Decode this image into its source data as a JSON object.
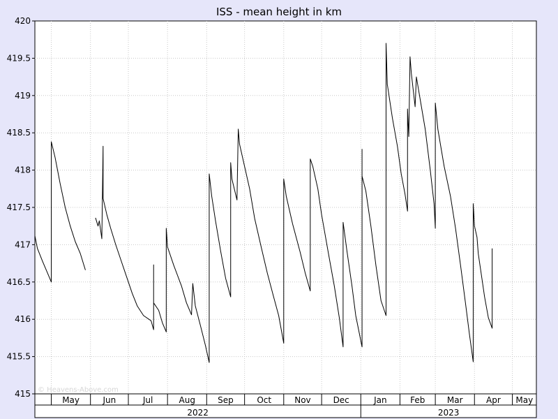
{
  "chart_data": {
    "type": "line",
    "title": "ISS - mean height in km",
    "xlabel": "",
    "ylabel": "",
    "ylim": [
      415,
      420
    ],
    "y_ticks": [
      "415",
      "415.5",
      "416",
      "416.5",
      "417",
      "417.5",
      "418",
      "418.5",
      "419",
      "419.5",
      "420"
    ],
    "x_range": [
      "2022-04-18",
      "2023-05-20"
    ],
    "months": [
      {
        "label": "May",
        "date": "2022-05-01"
      },
      {
        "label": "Jun",
        "date": "2022-06-01"
      },
      {
        "label": "Jul",
        "date": "2022-07-01"
      },
      {
        "label": "Aug",
        "date": "2022-08-01"
      },
      {
        "label": "Sep",
        "date": "2022-09-01"
      },
      {
        "label": "Oct",
        "date": "2022-10-01"
      },
      {
        "label": "Nov",
        "date": "2022-11-01"
      },
      {
        "label": "Dec",
        "date": "2022-12-01"
      },
      {
        "label": "Jan",
        "date": "2023-01-01"
      },
      {
        "label": "Feb",
        "date": "2023-02-01"
      },
      {
        "label": "Mar",
        "date": "2023-03-01"
      },
      {
        "label": "Apr",
        "date": "2023-04-01"
      },
      {
        "label": "May",
        "date": "2023-05-01"
      }
    ],
    "years": [
      {
        "label": "2022",
        "start": "2022-04-18",
        "end": "2023-01-01"
      },
      {
        "label": "2023",
        "start": "2023-01-01",
        "end": "2023-05-20"
      }
    ],
    "grid": true,
    "series": [
      {
        "name": "",
        "color": "#000000",
        "points": [
          [
            "2022-04-18",
            417.12
          ],
          [
            "2022-04-20",
            416.95
          ],
          [
            "2022-04-24",
            416.78
          ],
          [
            "2022-04-28",
            416.62
          ],
          [
            "2022-05-01",
            416.5
          ],
          [
            "2022-05-01",
            416.5
          ],
          [
            "2022-05-01",
            418.38
          ],
          [
            "2022-05-04",
            418.17
          ],
          [
            "2022-05-08",
            417.82
          ],
          [
            "2022-05-12",
            417.5
          ],
          [
            "2022-05-16",
            417.25
          ],
          [
            "2022-05-20",
            417.04
          ],
          [
            "2022-05-24",
            416.88
          ],
          [
            "2022-05-28",
            416.66
          ],
          null,
          [
            "2022-06-05",
            417.36
          ],
          [
            "2022-06-07",
            417.25
          ],
          [
            "2022-06-08",
            417.32
          ],
          [
            "2022-06-10",
            417.08
          ],
          [
            "2022-06-11",
            418.32
          ],
          [
            "2022-06-11",
            417.62
          ],
          [
            "2022-06-14",
            417.4
          ],
          [
            "2022-06-17",
            417.22
          ],
          [
            "2022-06-21",
            417.0
          ],
          [
            "2022-06-26",
            416.75
          ],
          [
            "2022-06-30",
            416.55
          ],
          [
            "2022-07-04",
            416.35
          ],
          [
            "2022-07-08",
            416.18
          ],
          [
            "2022-07-13",
            416.05
          ],
          [
            "2022-07-19",
            415.98
          ],
          [
            "2022-07-21",
            415.86
          ],
          [
            "2022-07-21",
            416.73
          ],
          [
            "2022-07-21",
            416.22
          ],
          [
            "2022-07-25",
            416.12
          ],
          [
            "2022-07-28",
            415.95
          ],
          [
            "2022-07-31",
            415.83
          ],
          [
            "2022-07-31",
            417.22
          ],
          [
            "2022-08-01",
            416.97
          ],
          [
            "2022-08-06",
            416.72
          ],
          [
            "2022-08-12",
            416.45
          ],
          [
            "2022-08-16",
            416.22
          ],
          [
            "2022-08-20",
            416.06
          ],
          [
            "2022-08-21",
            416.48
          ],
          [
            "2022-08-23",
            416.18
          ],
          [
            "2022-08-27",
            415.92
          ],
          [
            "2022-08-31",
            415.65
          ],
          [
            "2022-09-03",
            415.42
          ],
          [
            "2022-09-03",
            417.95
          ],
          [
            "2022-09-05",
            417.65
          ],
          [
            "2022-09-08",
            417.32
          ],
          [
            "2022-09-12",
            416.92
          ],
          [
            "2022-09-16",
            416.55
          ],
          [
            "2022-09-20",
            416.3
          ],
          [
            "2022-09-20",
            418.1
          ],
          [
            "2022-09-21",
            417.88
          ],
          [
            "2022-09-25",
            417.6
          ],
          [
            "2022-09-26",
            418.55
          ],
          [
            "2022-09-27",
            418.35
          ],
          [
            "2022-10-01",
            418.05
          ],
          [
            "2022-10-05",
            417.75
          ],
          [
            "2022-10-09",
            417.35
          ],
          [
            "2022-10-14",
            416.98
          ],
          [
            "2022-10-19",
            416.62
          ],
          [
            "2022-10-24",
            416.3
          ],
          [
            "2022-10-28",
            416.05
          ],
          [
            "2022-11-01",
            415.68
          ],
          [
            "2022-11-01",
            417.88
          ],
          [
            "2022-11-03",
            417.65
          ],
          [
            "2022-11-08",
            417.28
          ],
          [
            "2022-11-14",
            416.9
          ],
          [
            "2022-11-18",
            416.62
          ],
          [
            "2022-11-22",
            416.38
          ],
          [
            "2022-11-22",
            418.15
          ],
          [
            "2022-11-24",
            418.05
          ],
          [
            "2022-11-28",
            417.75
          ],
          [
            "2022-12-01",
            417.4
          ],
          [
            "2022-12-06",
            416.92
          ],
          [
            "2022-12-11",
            416.45
          ],
          [
            "2022-12-15",
            416.02
          ],
          [
            "2022-12-18",
            415.63
          ],
          [
            "2022-12-18",
            417.3
          ],
          [
            "2022-12-21",
            416.92
          ],
          [
            "2022-12-25",
            416.45
          ],
          [
            "2022-12-28",
            416.05
          ],
          [
            "2023-01-02",
            415.63
          ],
          [
            "2023-01-02",
            418.28
          ],
          [
            "2023-01-02",
            417.92
          ],
          [
            "2023-01-05",
            417.72
          ],
          [
            "2023-01-09",
            417.25
          ],
          [
            "2023-01-13",
            416.72
          ],
          [
            "2023-01-17",
            416.25
          ],
          [
            "2023-01-21",
            416.05
          ],
          [
            "2023-01-21",
            419.7
          ],
          [
            "2023-01-22",
            419.15
          ],
          [
            "2023-01-26",
            418.7
          ],
          [
            "2023-01-30",
            418.32
          ],
          [
            "2023-02-02",
            417.95
          ],
          [
            "2023-02-05",
            417.68
          ],
          [
            "2023-02-07",
            417.45
          ],
          [
            "2023-02-07",
            418.82
          ],
          [
            "2023-02-08",
            418.45
          ],
          [
            "2023-02-09",
            419.52
          ],
          [
            "2023-02-10",
            419.3
          ],
          [
            "2023-02-13",
            418.85
          ],
          [
            "2023-02-14",
            419.25
          ],
          [
            "2023-02-17",
            418.95
          ],
          [
            "2023-02-21",
            418.55
          ],
          [
            "2023-02-25",
            418.0
          ],
          [
            "2023-02-28",
            417.55
          ],
          [
            "2023-03-01",
            417.22
          ],
          [
            "2023-03-01",
            418.9
          ],
          [
            "2023-03-03",
            418.55
          ],
          [
            "2023-03-08",
            418.05
          ],
          [
            "2023-03-13",
            417.65
          ],
          [
            "2023-03-17",
            417.22
          ],
          [
            "2023-03-21",
            416.72
          ],
          [
            "2023-03-25",
            416.2
          ],
          [
            "2023-03-28",
            415.8
          ],
          [
            "2023-03-31",
            415.43
          ],
          [
            "2023-03-31",
            417.55
          ],
          [
            "2023-04-01",
            417.25
          ],
          [
            "2023-04-03",
            417.1
          ],
          [
            "2023-04-04",
            416.88
          ],
          [
            "2023-04-06",
            416.65
          ],
          [
            "2023-04-09",
            416.3
          ],
          [
            "2023-04-12",
            416.02
          ],
          [
            "2023-04-15",
            415.88
          ],
          [
            "2023-04-15",
            416.95
          ]
        ]
      }
    ]
  },
  "watermark": "© Heavens-Above.com"
}
